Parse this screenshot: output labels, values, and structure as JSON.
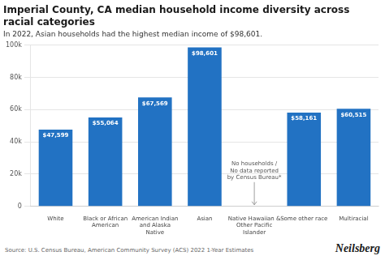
{
  "chart_data": {
    "type": "bar",
    "title": "Imperial County, CA median household income diversity across\nracial categories",
    "subtitle": "In 2022, Asian households had the highest median income of $98,601.",
    "categories": [
      "White",
      "Black or African\nAmerican",
      "American Indian\nand Alaska\nNative",
      "Asian",
      "Native Hawaiian &\nOther Pacific\nIslander",
      "Some other race",
      "Multiracial"
    ],
    "values": [
      47599,
      55064,
      67569,
      98601,
      0,
      58161,
      60515
    ],
    "value_labels": [
      "$47,599",
      "$55,064",
      "$67,569",
      "$98,601",
      null,
      "$58,161",
      "$60,515"
    ],
    "data_labels": true,
    "color": "#2272C3",
    "annotations": [
      {
        "text": "No households /\nNo data reported\nby Census Bureau*",
        "category": "Native Hawaiian &\nOther Pacific\nIslander"
      }
    ],
    "source": "Source: U.S. Census Bureau, American Community Survey (ACS) 2022 1-Year Estimates",
    "brand": "Neilsberg",
    "ylim": [
      0,
      100000
    ],
    "yticks": [
      0,
      {
        "value": 20000,
        "label": "20k"
      },
      {
        "value": 40000,
        "label": "40k"
      },
      {
        "value": 60000,
        "label": "60k"
      },
      {
        "value": 80000,
        "label": "80k"
      },
      {
        "value": 100000,
        "label": "100k"
      }
    ],
    "grid": true
  }
}
